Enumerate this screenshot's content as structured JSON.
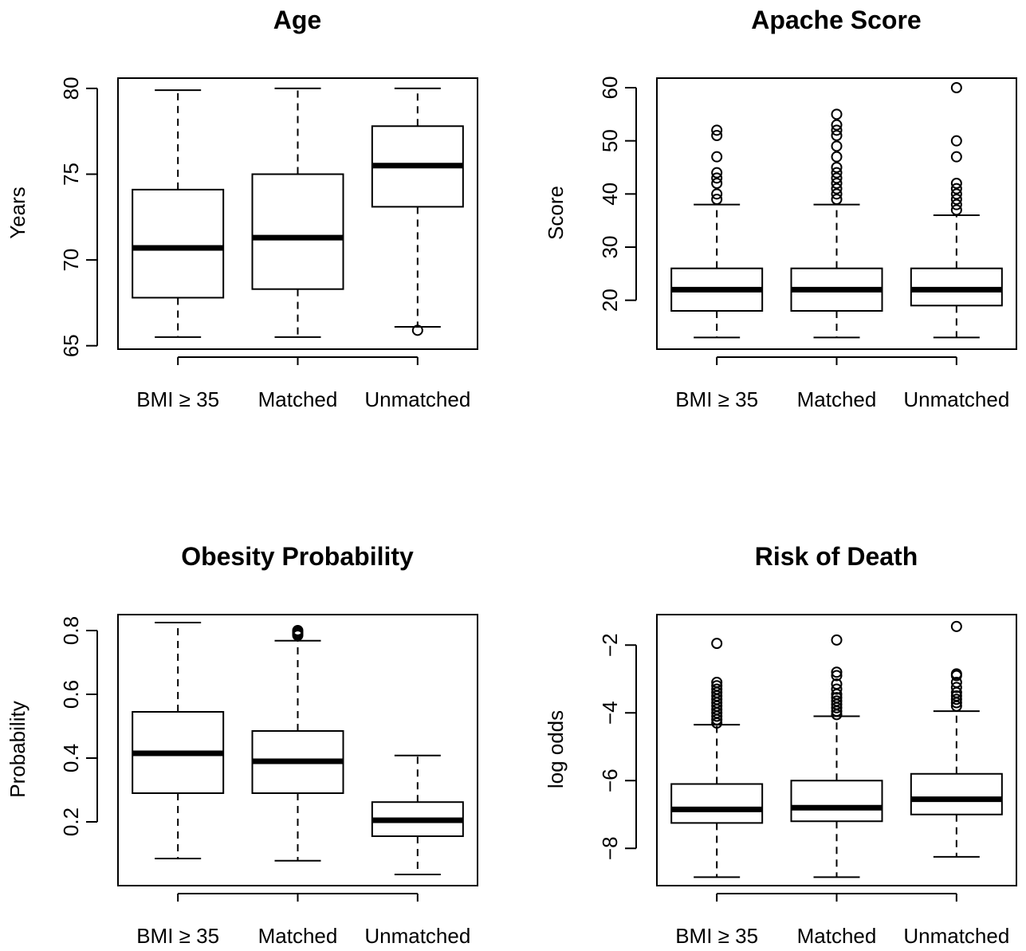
{
  "chart_data": [
    {
      "type": "boxplot",
      "title": "Age",
      "ylabel": "Years",
      "categories": [
        "BMI ≥ 35",
        "Matched",
        "Unmatched"
      ],
      "ylim": [
        64.8,
        80.6
      ],
      "yticks": [
        65,
        70,
        75,
        80
      ],
      "ytick_labels": [
        "65",
        "70",
        "75",
        "80"
      ],
      "boxes": [
        {
          "whisker_low": 65.5,
          "q1": 67.8,
          "median": 70.7,
          "q3": 74.1,
          "whisker_high": 79.9,
          "outliers": []
        },
        {
          "whisker_low": 65.5,
          "q1": 68.3,
          "median": 71.3,
          "q3": 75.0,
          "whisker_high": 80.0,
          "outliers": []
        },
        {
          "whisker_low": 66.1,
          "q1": 73.1,
          "median": 75.5,
          "q3": 77.8,
          "whisker_high": 80.0,
          "outliers": [
            65.9
          ]
        }
      ]
    },
    {
      "type": "boxplot",
      "title": "Apache Score",
      "ylabel": "Score",
      "categories": [
        "BMI ≥ 35",
        "Matched",
        "Unmatched"
      ],
      "ylim": [
        10.8,
        61.8
      ],
      "yticks": [
        20,
        30,
        40,
        50,
        60
      ],
      "ytick_labels": [
        "20",
        "30",
        "40",
        "50",
        "60"
      ],
      "boxes": [
        {
          "whisker_low": 13,
          "q1": 18,
          "median": 22,
          "q3": 26,
          "whisker_high": 38,
          "outliers": [
            39,
            40,
            42,
            43,
            44,
            47,
            51,
            52
          ]
        },
        {
          "whisker_low": 13,
          "q1": 18,
          "median": 22,
          "q3": 26,
          "whisker_high": 38,
          "outliers": [
            39,
            40,
            41,
            42,
            43,
            44,
            45,
            47,
            49,
            51,
            52,
            53,
            55
          ]
        },
        {
          "whisker_low": 13,
          "q1": 19,
          "median": 22,
          "q3": 26,
          "whisker_high": 36,
          "outliers": [
            37,
            38,
            39,
            40,
            41,
            42,
            47,
            50,
            60
          ]
        }
      ]
    },
    {
      "type": "boxplot",
      "title": "Obesity Probability",
      "ylabel": "Probability",
      "categories": [
        "BMI ≥ 35",
        "Matched",
        "Unmatched"
      ],
      "ylim": [
        0.0,
        0.85
      ],
      "yticks": [
        0.2,
        0.4,
        0.6,
        0.8
      ],
      "ytick_labels": [
        "0.2",
        "0.4",
        "0.6",
        "0.8"
      ],
      "boxes": [
        {
          "whisker_low": 0.085,
          "q1": 0.29,
          "median": 0.415,
          "q3": 0.545,
          "whisker_high": 0.825,
          "outliers": []
        },
        {
          "whisker_low": 0.078,
          "q1": 0.29,
          "median": 0.39,
          "q3": 0.485,
          "whisker_high": 0.768,
          "outliers": [
            0.785,
            0.79,
            0.795,
            0.8
          ]
        },
        {
          "whisker_low": 0.035,
          "q1": 0.155,
          "median": 0.205,
          "q3": 0.262,
          "whisker_high": 0.408,
          "outliers": []
        }
      ]
    },
    {
      "type": "boxplot",
      "title": "Risk of Death",
      "ylabel": "log odds",
      "categories": [
        "BMI ≥ 35",
        "Matched",
        "Unmatched"
      ],
      "ylim": [
        -9.1,
        -1.1
      ],
      "yticks": [
        -8,
        -6,
        -4,
        -2
      ],
      "ytick_labels": [
        "−8",
        "−6",
        "−4",
        "−2"
      ],
      "boxes": [
        {
          "whisker_low": -8.85,
          "q1": -7.25,
          "median": -6.85,
          "q3": -6.1,
          "whisker_high": -4.35,
          "outliers": [
            -4.3,
            -4.2,
            -4.1,
            -4.0,
            -3.9,
            -3.8,
            -3.7,
            -3.6,
            -3.5,
            -3.4,
            -3.3,
            -3.2,
            -3.1,
            -1.95
          ]
        },
        {
          "whisker_low": -8.85,
          "q1": -7.2,
          "median": -6.8,
          "q3": -6.0,
          "whisker_high": -4.1,
          "outliers": [
            -4.05,
            -3.95,
            -3.85,
            -3.75,
            -3.65,
            -3.55,
            -3.45,
            -3.3,
            -3.15,
            -2.9,
            -2.8,
            -1.85
          ]
        },
        {
          "whisker_low": -8.25,
          "q1": -7.0,
          "median": -6.55,
          "q3": -5.8,
          "whisker_high": -3.95,
          "outliers": [
            -3.8,
            -3.7,
            -3.6,
            -3.5,
            -3.4,
            -3.25,
            -3.1,
            -2.9,
            -2.85,
            -1.45
          ]
        }
      ]
    }
  ]
}
